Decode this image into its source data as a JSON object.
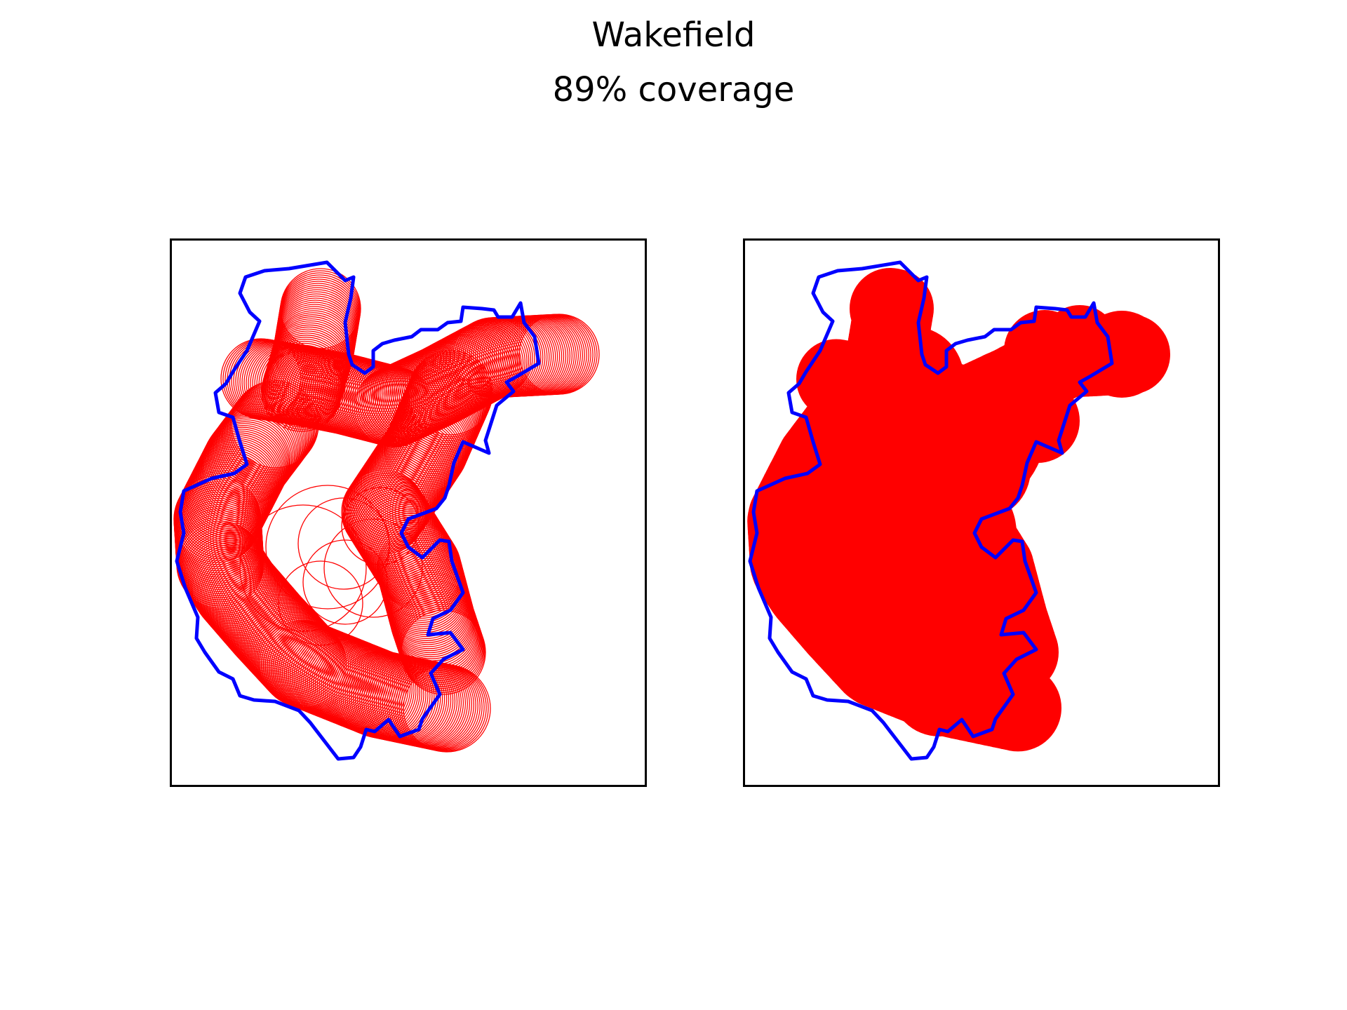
{
  "figure": {
    "title": "Wakefield",
    "subtitle": "89% coverage"
  },
  "colors": {
    "boundary": "#0000ff",
    "coverage": "#ff0000",
    "frame": "#000000",
    "background": "#ffffff"
  },
  "panels": [
    {
      "name": "coverage-circles-outline",
      "style": "outline"
    },
    {
      "name": "coverage-circles-filled",
      "style": "filled"
    }
  ]
}
